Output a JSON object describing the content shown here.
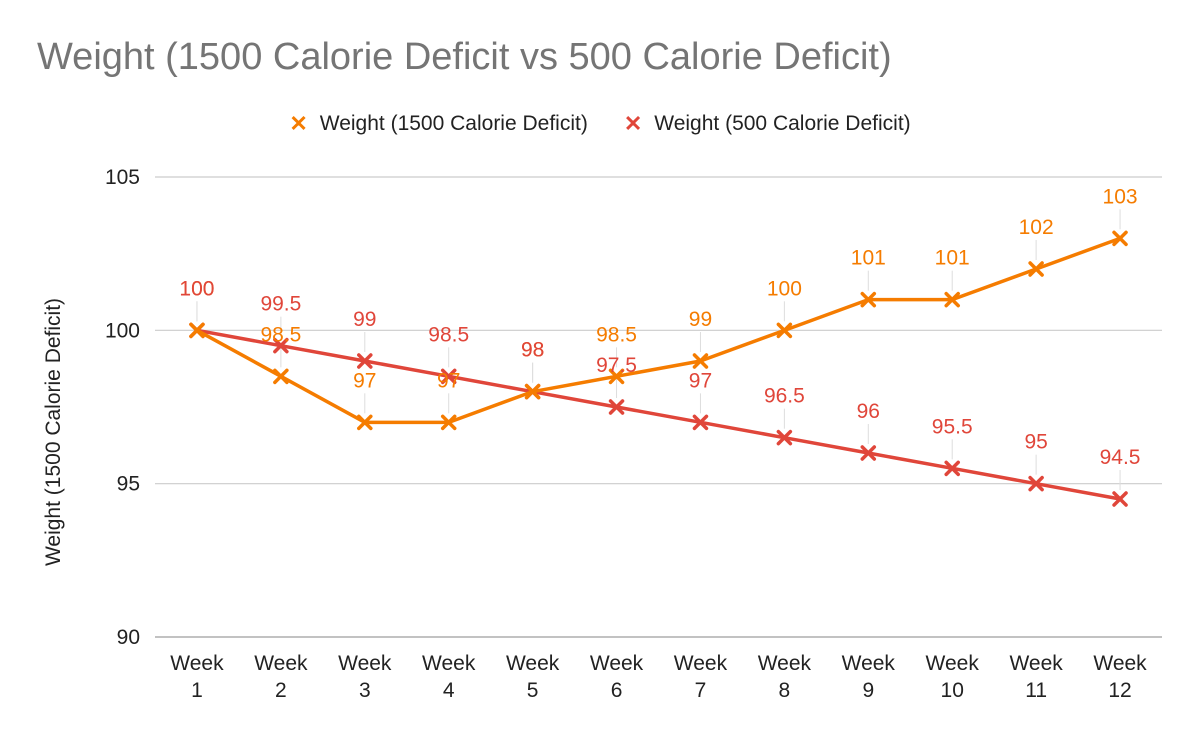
{
  "chart_data": {
    "type": "line",
    "title": "Weight (1500 Calorie Deficit vs 500 Calorie Deficit)",
    "ylabel": "Weight (1500 Calorie Deficit)",
    "xlabel": "",
    "ylim": [
      90,
      105
    ],
    "yticks": [
      90,
      95,
      100,
      105
    ],
    "categories": [
      [
        "Week",
        "1"
      ],
      [
        "Week",
        "2"
      ],
      [
        "Week",
        "3"
      ],
      [
        "Week",
        "4"
      ],
      [
        "Week",
        "5"
      ],
      [
        "Week",
        "6"
      ],
      [
        "Week",
        "7"
      ],
      [
        "Week",
        "8"
      ],
      [
        "Week",
        "9"
      ],
      [
        "Week",
        "10"
      ],
      [
        "Week",
        "11"
      ],
      [
        "Week",
        "12"
      ]
    ],
    "grid": true,
    "legend_position": "top",
    "series": [
      {
        "name": "Weight (1500 Calorie Deficit)",
        "color": "#f57c00",
        "values": [
          100,
          98.5,
          97,
          97,
          98,
          98.5,
          99,
          100,
          101,
          101,
          102,
          103
        ],
        "labels": [
          "100",
          "98.5",
          "97",
          "97",
          "98",
          "98.5",
          "99",
          "100",
          "101",
          "101",
          "102",
          "103"
        ]
      },
      {
        "name": "Weight (500 Calorie Deficit)",
        "color": "#e0463a",
        "values": [
          100,
          99.5,
          99,
          98.5,
          98,
          97.5,
          97,
          96.5,
          96,
          95.5,
          95,
          94.5
        ],
        "labels": [
          "100",
          "99.5",
          "99",
          "98.5",
          "98",
          "97.5",
          "97",
          "96.5",
          "96",
          "95.5",
          "95",
          "94.5"
        ]
      }
    ]
  }
}
